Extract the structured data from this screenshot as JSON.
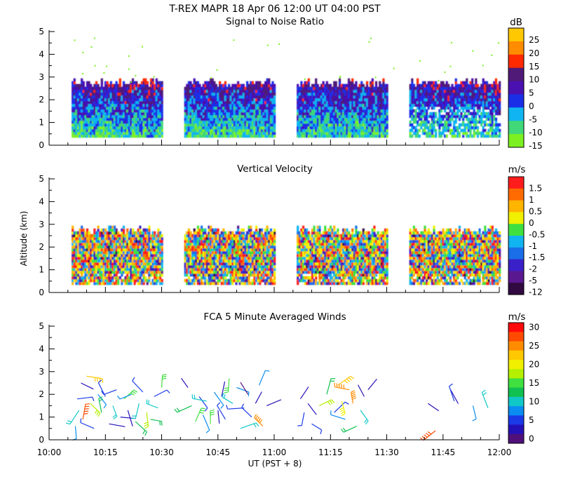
{
  "header": {
    "title": "T-REX  MAPR 18 Apr 06  12:00 UT  04:00  PST"
  },
  "chart_data": [
    {
      "type": "heatmap",
      "title": "Signal to Noise Ratio",
      "ylabel": "",
      "xlabel": "",
      "ylim": [
        0,
        5
      ],
      "y_ticks": [
        "0",
        "1",
        "2",
        "3",
        "4",
        "5"
      ],
      "x_range_minutes": [
        0,
        120
      ],
      "colorbar": {
        "unit": "dB",
        "labels": [
          "25",
          "20",
          "15",
          "10",
          "5",
          "0",
          "-5",
          "-10",
          "-15"
        ],
        "colors": [
          "#ffc800",
          "#ff8c00",
          "#ff2a00",
          "#501a78",
          "#4a10b0",
          "#1a2ee8",
          "#10b4f0",
          "#40d878",
          "#7cf020"
        ]
      },
      "data_segments_minutes": [
        [
          6,
          30
        ],
        [
          36,
          60
        ],
        [
          66,
          90
        ],
        [
          96,
          120
        ]
      ],
      "data_altitude_km": [
        0.35,
        2.7
      ]
    },
    {
      "type": "heatmap",
      "title": "Vertical Velocity",
      "ylabel": "Altitude (km)",
      "xlabel": "",
      "ylim": [
        0,
        5
      ],
      "y_ticks": [
        "0",
        "1",
        "2",
        "3",
        "4",
        "5"
      ],
      "x_range_minutes": [
        0,
        120
      ],
      "colorbar": {
        "unit": "m/s",
        "labels": [
          "1.5",
          "1",
          "0.5",
          "0",
          "-0.5",
          "-1",
          "-1.5",
          "-2",
          "-5",
          "-12"
        ],
        "colors": [
          "#ff1c1c",
          "#ff6a00",
          "#ffb400",
          "#f0f000",
          "#40e040",
          "#10b4f0",
          "#1a6ee8",
          "#3a20c8",
          "#5a1890",
          "#300a40"
        ]
      },
      "data_segments_minutes": [
        [
          6,
          30
        ],
        [
          36,
          60
        ],
        [
          66,
          90
        ],
        [
          96,
          120
        ]
      ],
      "data_altitude_km": [
        0.35,
        2.7
      ]
    },
    {
      "type": "scatter",
      "title": "FCA 5 Minute Averaged Winds",
      "ylabel": "",
      "xlabel": "UT  (PST + 8)",
      "ylim": [
        0,
        5
      ],
      "y_ticks": [
        "0",
        "1",
        "2",
        "3",
        "4",
        "5"
      ],
      "x_range_minutes": [
        0,
        120
      ],
      "x_ticks": [
        "10:00",
        "10:15",
        "10:30",
        "10:45",
        "11:00",
        "11:15",
        "11:30",
        "11:45",
        "12:00"
      ],
      "colorbar": {
        "unit": "m/s",
        "labels": [
          "30",
          "25",
          "20",
          "15",
          "10",
          "5",
          "0"
        ],
        "colors": [
          "#ff0a0a",
          "#ff4a00",
          "#ff8c00",
          "#ffc800",
          "#f0f000",
          "#b4f000",
          "#40e040",
          "#10c050",
          "#10c8c8",
          "#0a8cf0",
          "#1a3ae8",
          "#2410b8",
          "#50107a"
        ]
      },
      "barbs": [
        {
          "x": 7,
          "y": 0.6,
          "speed": 8
        },
        {
          "x": 7.5,
          "y": 1.8,
          "speed": 6
        },
        {
          "x": 8,
          "y": 1.3,
          "speed": 12
        },
        {
          "x": 8.5,
          "y": 2.5,
          "speed": 4
        },
        {
          "x": 9,
          "y": 0.9,
          "speed": 28
        },
        {
          "x": 10,
          "y": 2.8,
          "speed": 24
        },
        {
          "x": 11,
          "y": 1.6,
          "speed": 18
        },
        {
          "x": 12,
          "y": 0.5,
          "speed": 6
        },
        {
          "x": 13,
          "y": 2.0,
          "speed": 9
        },
        {
          "x": 14,
          "y": 1.2,
          "speed": 14
        },
        {
          "x": 15,
          "y": 1.9,
          "speed": 5
        },
        {
          "x": 16,
          "y": 0.7,
          "speed": 3
        },
        {
          "x": 17,
          "y": 1.5,
          "speed": 11
        },
        {
          "x": 18,
          "y": 2.2,
          "speed": 7
        },
        {
          "x": 19,
          "y": 1.0,
          "speed": 4
        },
        {
          "x": 20,
          "y": 1.8,
          "speed": 16
        },
        {
          "x": 21,
          "y": 1.3,
          "speed": 3
        },
        {
          "x": 22,
          "y": 2.0,
          "speed": 8
        },
        {
          "x": 23,
          "y": 0.8,
          "speed": 13
        },
        {
          "x": 24,
          "y": 1.6,
          "speed": 10
        },
        {
          "x": 25,
          "y": 2.1,
          "speed": 5
        },
        {
          "x": 26,
          "y": 1.2,
          "speed": 19
        },
        {
          "x": 27,
          "y": 0.9,
          "speed": 14
        },
        {
          "x": 28,
          "y": 1.9,
          "speed": 6
        },
        {
          "x": 29,
          "y": 1.4,
          "speed": 12
        },
        {
          "x": 30,
          "y": 2.3,
          "speed": 15
        },
        {
          "x": 37,
          "y": 2.3,
          "speed": 4
        },
        {
          "x": 38,
          "y": 1.5,
          "speed": 13
        },
        {
          "x": 39,
          "y": 0.8,
          "speed": 17
        },
        {
          "x": 40,
          "y": 1.9,
          "speed": 5
        },
        {
          "x": 41,
          "y": 1.1,
          "speed": 9
        },
        {
          "x": 42,
          "y": 1.7,
          "speed": 12
        },
        {
          "x": 43,
          "y": 0.7,
          "speed": 15
        },
        {
          "x": 44,
          "y": 2.1,
          "speed": 8
        },
        {
          "x": 45,
          "y": 1.3,
          "speed": 3
        },
        {
          "x": 46,
          "y": 1.9,
          "speed": 4
        },
        {
          "x": 47,
          "y": 0.9,
          "speed": 6
        },
        {
          "x": 48,
          "y": 2.7,
          "speed": 17
        },
        {
          "x": 49,
          "y": 1.6,
          "speed": 11
        },
        {
          "x": 50,
          "y": 2.3,
          "speed": 9
        },
        {
          "x": 51,
          "y": 0.5,
          "speed": 10
        },
        {
          "x": 52,
          "y": 1.4,
          "speed": 5
        },
        {
          "x": 53,
          "y": 2.0,
          "speed": 2
        },
        {
          "x": 54,
          "y": 1.0,
          "speed": 7
        },
        {
          "x": 55,
          "y": 1.6,
          "speed": 4
        },
        {
          "x": 56,
          "y": 2.4,
          "speed": 8
        },
        {
          "x": 57,
          "y": 0.6,
          "speed": 27
        },
        {
          "x": 58,
          "y": 1.5,
          "speed": 3
        },
        {
          "x": 67,
          "y": 1.8,
          "speed": 4
        },
        {
          "x": 68,
          "y": 1.2,
          "speed": 5
        },
        {
          "x": 69,
          "y": 1.6,
          "speed": 3
        },
        {
          "x": 70,
          "y": 0.7,
          "speed": 7
        },
        {
          "x": 72,
          "y": 1.5,
          "speed": 18
        },
        {
          "x": 74,
          "y": 2.0,
          "speed": 13
        },
        {
          "x": 76,
          "y": 1.2,
          "speed": 6
        },
        {
          "x": 77,
          "y": 2.4,
          "speed": 24
        },
        {
          "x": 78,
          "y": 1.7,
          "speed": 20
        },
        {
          "x": 79,
          "y": 0.9,
          "speed": 9
        },
        {
          "x": 80,
          "y": 2.2,
          "speed": 27
        },
        {
          "x": 81,
          "y": 1.6,
          "speed": 25
        },
        {
          "x": 82,
          "y": 0.6,
          "speed": 14
        },
        {
          "x": 83,
          "y": 1.3,
          "speed": 11
        },
        {
          "x": 84,
          "y": 1.9,
          "speed": 4
        },
        {
          "x": 85,
          "y": 2.2,
          "speed": 3
        },
        {
          "x": 101,
          "y": 1.6,
          "speed": 3
        },
        {
          "x": 103,
          "y": 0.4,
          "speed": 29
        },
        {
          "x": 107,
          "y": 2.2,
          "speed": 4
        },
        {
          "x": 108,
          "y": 1.7,
          "speed": 5
        },
        {
          "x": 113,
          "y": 1.5,
          "speed": 9
        },
        {
          "x": 117,
          "y": 1.4,
          "speed": 10
        }
      ]
    }
  ]
}
